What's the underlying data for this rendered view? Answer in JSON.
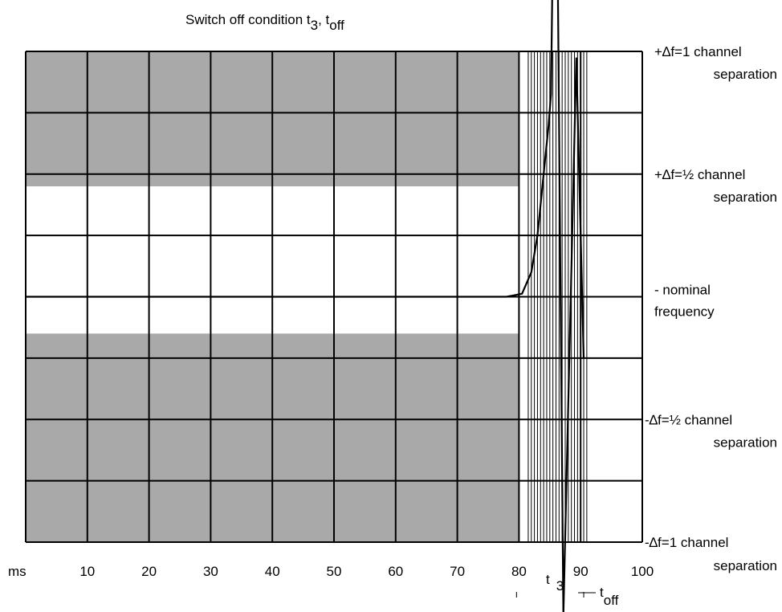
{
  "chart_data": {
    "type": "line",
    "title_main": "Switch off condition t",
    "title_sub1": "3",
    "title_sep": ", t",
    "title_sub2": "off",
    "x_unit": "ms",
    "x_ticks": [
      10,
      20,
      30,
      40,
      50,
      60,
      70,
      80,
      90,
      100
    ],
    "xlim": [
      0,
      100
    ],
    "ylim": [
      -4,
      4
    ],
    "grid": true,
    "fine_grid_x": [
      81.5,
      82,
      82.5,
      83,
      83.5,
      84,
      84.5,
      85,
      85.5,
      86,
      86.5,
      87,
      87.5,
      88,
      88.5,
      89,
      89.5,
      90,
      90.5,
      91
    ],
    "mask_regions": [
      {
        "x": [
          0,
          80
        ],
        "y": [
          1.8,
          4
        ]
      },
      {
        "x": [
          0,
          80
        ],
        "y": [
          -4,
          -0.6
        ]
      }
    ],
    "side_labels": [
      {
        "y": 4,
        "lines": [
          "+∆f=1 channel",
          "separation"
        ]
      },
      {
        "y": 2,
        "lines": [
          "+∆f=½ channel",
          "separation"
        ]
      },
      {
        "y": 0,
        "lines": [
          "- nominal",
          "frequency"
        ]
      },
      {
        "y": -2,
        "lines": [
          "-∆f=½ channel",
          "separation"
        ]
      },
      {
        "y": -4,
        "lines": [
          "-∆f=1 channel",
          "separation"
        ]
      }
    ],
    "markers": {
      "t3_label": "t",
      "t3_sub": "3",
      "toff_label": "t",
      "toff_sub": "off"
    },
    "series": [
      {
        "x": [
          0,
          78,
          80.5,
          82,
          83,
          83.5,
          84,
          84.8,
          85.2,
          85.6,
          86.2,
          87.2,
          89.3,
          90.5
        ],
        "y": [
          0,
          0,
          0.05,
          0.4,
          1.0,
          1.5,
          2.0,
          2.8,
          3.3,
          6.6,
          6.3,
          -5.2,
          3.9,
          -1.0
        ]
      }
    ]
  }
}
